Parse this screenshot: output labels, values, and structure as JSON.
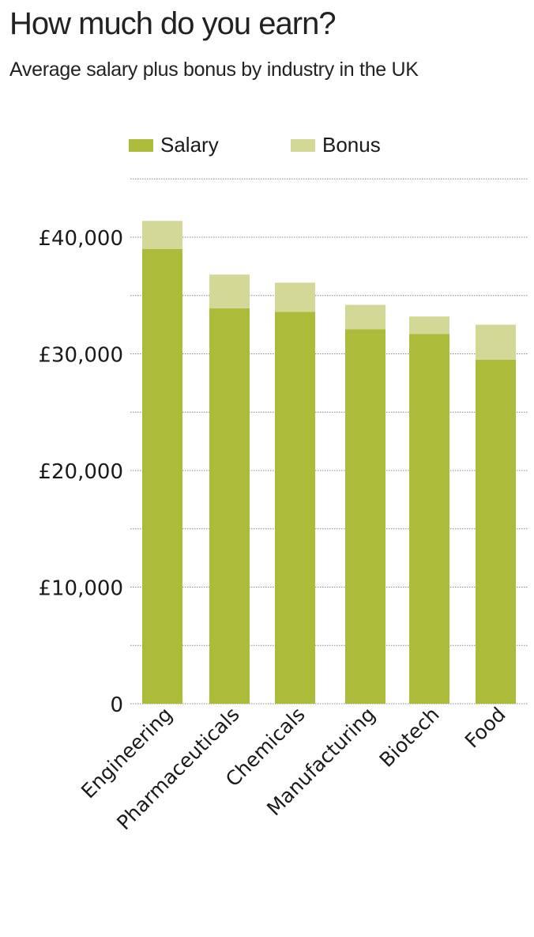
{
  "title": "How much do you earn?",
  "subtitle": "Average salary plus bonus by industry in the UK",
  "legend": [
    {
      "label": "Salary",
      "color": "#adbb3a"
    },
    {
      "label": "Bonus",
      "color": "#d3d897"
    }
  ],
  "colors": {
    "salary": "#adbb3a",
    "bonus": "#d3d897",
    "grid": "#888888",
    "text": "#1a1a1a"
  },
  "chart_data": {
    "type": "bar",
    "stacked": true,
    "title": "How much do you earn?",
    "subtitle": "Average salary plus bonus by industry in the UK",
    "xlabel": "",
    "ylabel": "",
    "categories": [
      "Engineering",
      "Pharmaceuticals",
      "Chemicals",
      "Manufacturing",
      "Biotech",
      "Food"
    ],
    "series": [
      {
        "name": "Salary",
        "values": [
          39000,
          33900,
          33600,
          32100,
          31700,
          29500
        ]
      },
      {
        "name": "Bonus",
        "values": [
          2400,
          2900,
          2500,
          2100,
          1500,
          3000
        ]
      }
    ],
    "totals": [
      41400,
      36800,
      36100,
      34200,
      33200,
      32500
    ],
    "ylim": [
      0,
      45000
    ],
    "yticks": [
      0,
      10000,
      20000,
      30000,
      40000
    ],
    "ytick_labels": [
      "0",
      "£10,000",
      "£20,000",
      "£30,000",
      "£40,000"
    ],
    "grid": true,
    "grid_step": 5000,
    "legend_position": "top"
  }
}
